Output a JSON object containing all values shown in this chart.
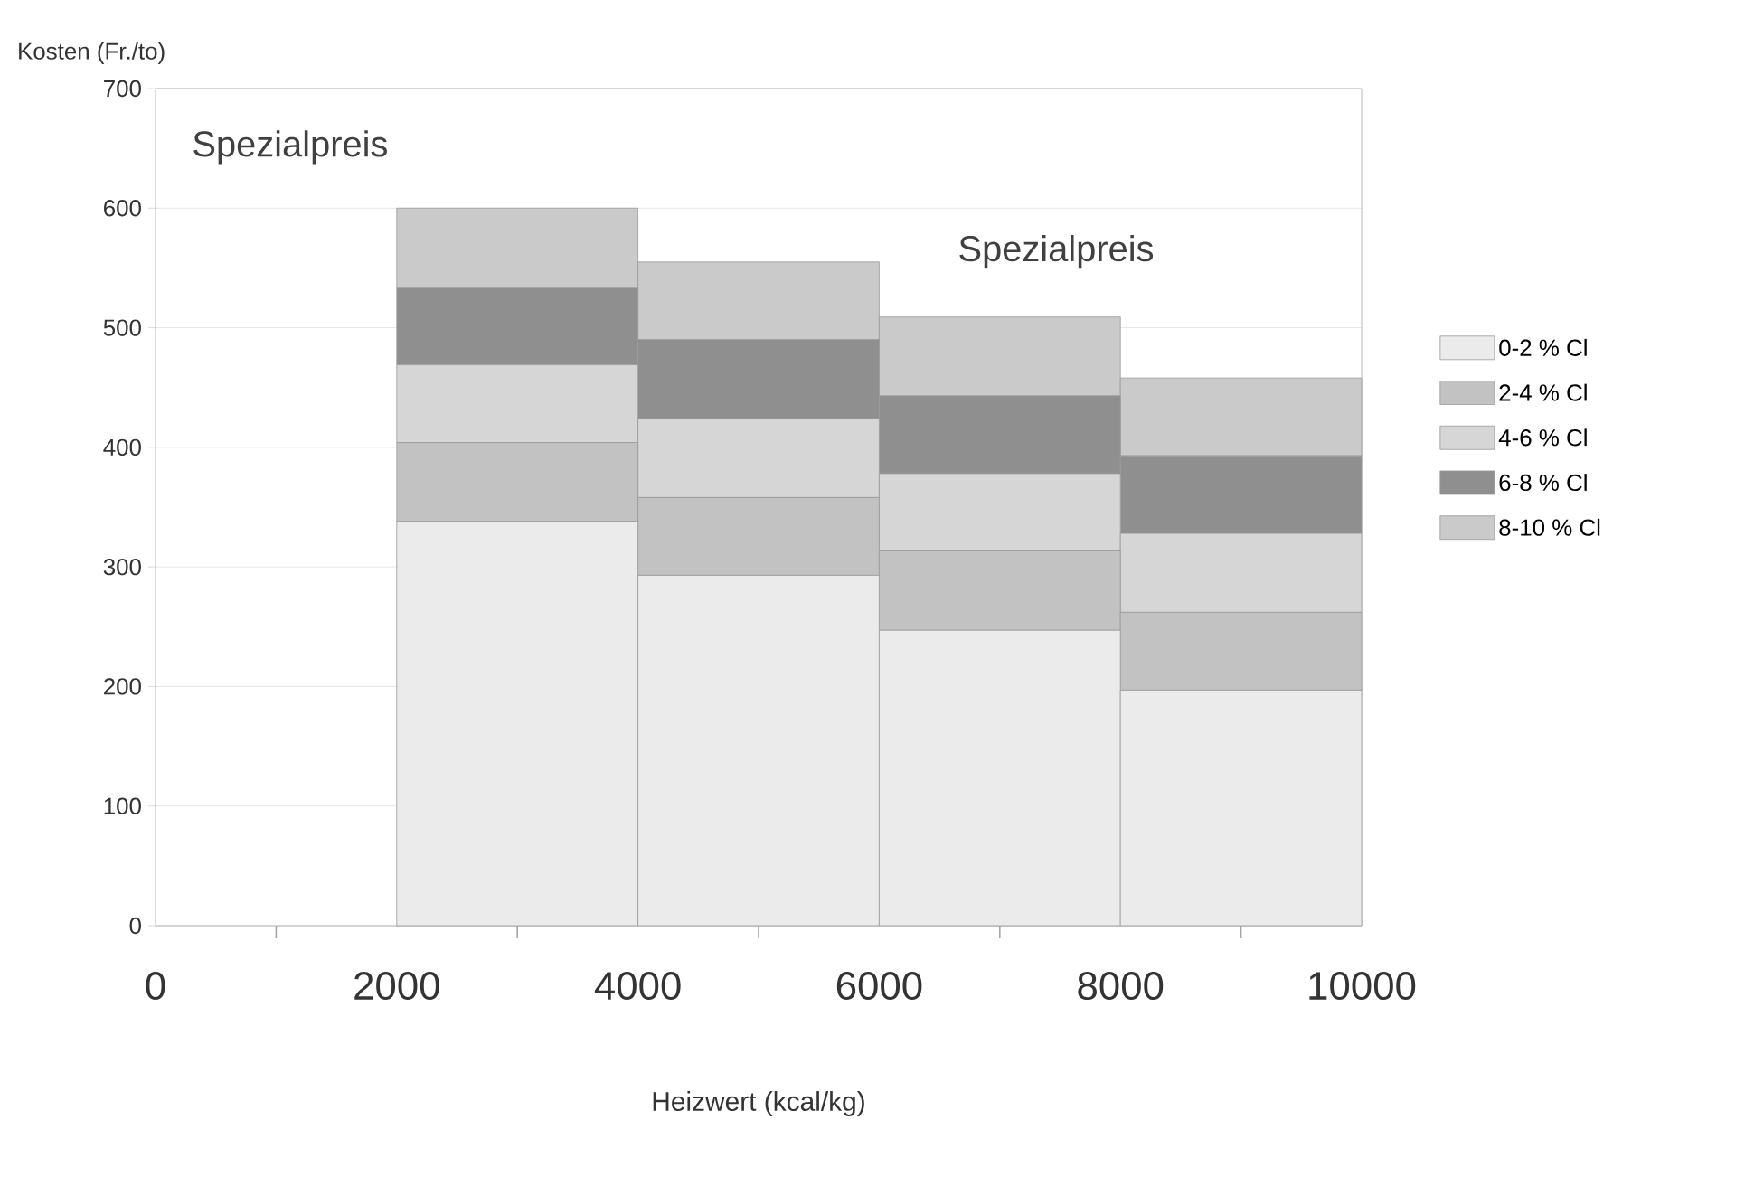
{
  "chart_data": {
    "type": "bar",
    "stacked": true,
    "xlabel": "Heizwert (kcal/kg)",
    "ylabel": "Kosten (Fr./to)",
    "x": [
      3000,
      5000,
      7000,
      9000
    ],
    "series": [
      {
        "name": "0-2 % Cl",
        "color": "#ebebeb",
        "values": [
          338,
          293,
          247,
          197
        ]
      },
      {
        "name": "2-4 % Cl",
        "color": "#c2c2c2",
        "values": [
          66,
          65,
          67,
          65
        ]
      },
      {
        "name": "4-6 % Cl",
        "color": "#d6d6d6",
        "values": [
          65,
          66,
          64,
          66
        ]
      },
      {
        "name": "6-8 % Cl",
        "color": "#8f8f8f",
        "values": [
          64,
          66,
          65,
          65
        ]
      },
      {
        "name": "8-10 % Cl",
        "color": "#cacaca",
        "values": [
          67,
          65,
          66,
          65
        ]
      }
    ],
    "xlim": [
      0,
      10000
    ],
    "xticks": [
      0,
      2000,
      4000,
      6000,
      8000,
      10000,
      {
        "value": 1000,
        "label": null
      },
      {
        "value": 3000,
        "label": null
      },
      {
        "value": 5000,
        "label": null
      },
      {
        "value": 7000,
        "label": null
      },
      {
        "value": 9000,
        "label": null
      }
    ],
    "ylim": [
      0,
      700
    ],
    "yticks": [
      0,
      100,
      200,
      300,
      400,
      500,
      600,
      700
    ],
    "grid": "y",
    "legend": "right",
    "annotations": [
      "Spezialpreis",
      "Spezialpreis"
    ]
  }
}
